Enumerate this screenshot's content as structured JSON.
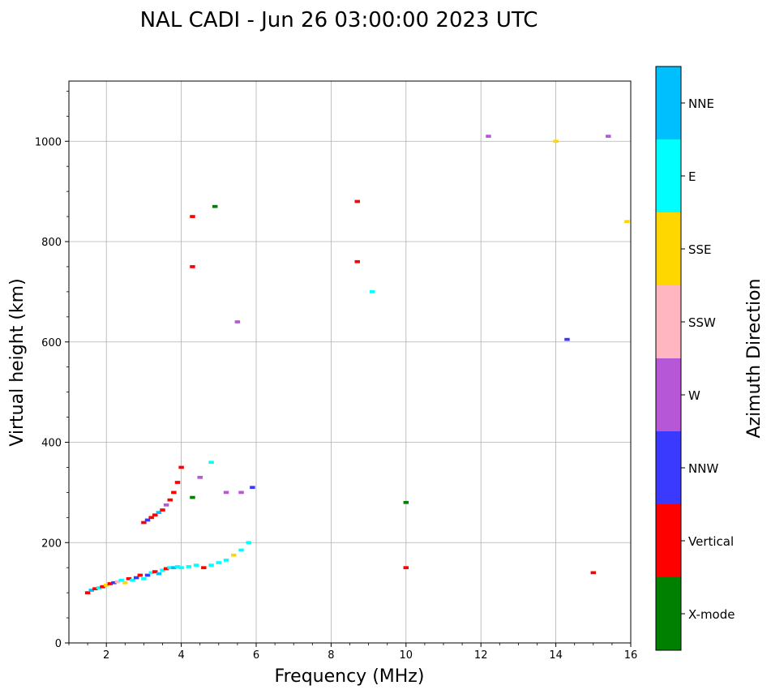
{
  "chart_data": {
    "type": "scatter",
    "title": "NAL CADI - Jun 26 03:00:00 2023 UTC",
    "xlabel": "Frequency (MHz)",
    "ylabel": "Virtual height (km)",
    "xlim": [
      1,
      16
    ],
    "ylim": [
      0,
      1120
    ],
    "xticks": [
      "2",
      "4",
      "6",
      "8",
      "10",
      "12",
      "14",
      "16"
    ],
    "yticks": [
      "0",
      "200",
      "400",
      "600",
      "800",
      "1000"
    ],
    "grid": true,
    "colorbar": {
      "title": "Azimuth Direction",
      "categories": [
        "X-mode",
        "Vertical",
        "NNW",
        "W",
        "SSW",
        "SSE",
        "E",
        "NNE"
      ],
      "colors": [
        "#008000",
        "#ff0000",
        "#3a3aff",
        "#b557d6",
        "#ffb6c1",
        "#ffd700",
        "#00ffff",
        "#00bfff"
      ]
    },
    "echoes": [
      {
        "f": 1.5,
        "h": 100,
        "c": "Vertical"
      },
      {
        "f": 1.6,
        "h": 105,
        "c": "NNE"
      },
      {
        "f": 1.7,
        "h": 108,
        "c": "Vertical"
      },
      {
        "f": 1.8,
        "h": 110,
        "c": "E"
      },
      {
        "f": 1.9,
        "h": 112,
        "c": "Vertical"
      },
      {
        "f": 2.0,
        "h": 115,
        "c": "SSE"
      },
      {
        "f": 2.1,
        "h": 118,
        "c": "Vertical"
      },
      {
        "f": 2.2,
        "h": 120,
        "c": "NNW"
      },
      {
        "f": 2.3,
        "h": 122,
        "c": "SSW"
      },
      {
        "f": 2.4,
        "h": 125,
        "c": "E"
      },
      {
        "f": 2.5,
        "h": 120,
        "c": "SSE"
      },
      {
        "f": 2.6,
        "h": 128,
        "c": "Vertical"
      },
      {
        "f": 2.7,
        "h": 125,
        "c": "E"
      },
      {
        "f": 2.8,
        "h": 130,
        "c": "NNW"
      },
      {
        "f": 2.9,
        "h": 135,
        "c": "Vertical"
      },
      {
        "f": 3.0,
        "h": 128,
        "c": "E"
      },
      {
        "f": 3.1,
        "h": 135,
        "c": "NNW"
      },
      {
        "f": 3.2,
        "h": 140,
        "c": "E"
      },
      {
        "f": 3.3,
        "h": 142,
        "c": "Vertical"
      },
      {
        "f": 3.4,
        "h": 138,
        "c": "NNE"
      },
      {
        "f": 3.5,
        "h": 145,
        "c": "E"
      },
      {
        "f": 3.6,
        "h": 148,
        "c": "Vertical"
      },
      {
        "f": 3.7,
        "h": 150,
        "c": "E"
      },
      {
        "f": 3.8,
        "h": 150,
        "c": "NNE"
      },
      {
        "f": 3.9,
        "h": 152,
        "c": "E"
      },
      {
        "f": 4.0,
        "h": 150,
        "c": "E"
      },
      {
        "f": 4.2,
        "h": 152,
        "c": "E"
      },
      {
        "f": 4.4,
        "h": 155,
        "c": "E"
      },
      {
        "f": 4.6,
        "h": 150,
        "c": "Vertical"
      },
      {
        "f": 4.8,
        "h": 155,
        "c": "E"
      },
      {
        "f": 5.0,
        "h": 160,
        "c": "E"
      },
      {
        "f": 5.2,
        "h": 165,
        "c": "E"
      },
      {
        "f": 5.4,
        "h": 175,
        "c": "SSE"
      },
      {
        "f": 5.6,
        "h": 185,
        "c": "E"
      },
      {
        "f": 5.8,
        "h": 200,
        "c": "E"
      },
      {
        "f": 3.0,
        "h": 240,
        "c": "Vertical"
      },
      {
        "f": 3.1,
        "h": 245,
        "c": "NNW"
      },
      {
        "f": 3.2,
        "h": 250,
        "c": "Vertical"
      },
      {
        "f": 3.3,
        "h": 255,
        "c": "Vertical"
      },
      {
        "f": 3.4,
        "h": 260,
        "c": "NNE"
      },
      {
        "f": 3.5,
        "h": 265,
        "c": "Vertical"
      },
      {
        "f": 3.6,
        "h": 275,
        "c": "W"
      },
      {
        "f": 3.7,
        "h": 285,
        "c": "Vertical"
      },
      {
        "f": 3.8,
        "h": 300,
        "c": "Vertical"
      },
      {
        "f": 3.9,
        "h": 320,
        "c": "Vertical"
      },
      {
        "f": 4.0,
        "h": 350,
        "c": "Vertical"
      },
      {
        "f": 4.3,
        "h": 290,
        "c": "X-mode"
      },
      {
        "f": 4.5,
        "h": 330,
        "c": "W"
      },
      {
        "f": 4.8,
        "h": 360,
        "c": "E"
      },
      {
        "f": 5.2,
        "h": 300,
        "c": "W"
      },
      {
        "f": 5.6,
        "h": 300,
        "c": "W"
      },
      {
        "f": 5.9,
        "h": 310,
        "c": "NNW"
      },
      {
        "f": 4.3,
        "h": 750,
        "c": "Vertical"
      },
      {
        "f": 4.3,
        "h": 850,
        "c": "Vertical"
      },
      {
        "f": 4.9,
        "h": 870,
        "c": "X-mode"
      },
      {
        "f": 5.5,
        "h": 640,
        "c": "W"
      },
      {
        "f": 8.7,
        "h": 880,
        "c": "Vertical"
      },
      {
        "f": 8.7,
        "h": 760,
        "c": "Vertical"
      },
      {
        "f": 9.1,
        "h": 700,
        "c": "E"
      },
      {
        "f": 10.0,
        "h": 150,
        "c": "Vertical"
      },
      {
        "f": 10.0,
        "h": 280,
        "c": "X-mode"
      },
      {
        "f": 12.2,
        "h": 1010,
        "c": "W"
      },
      {
        "f": 14.0,
        "h": 1000,
        "c": "SSE"
      },
      {
        "f": 14.3,
        "h": 605,
        "c": "NNW"
      },
      {
        "f": 15.0,
        "h": 140,
        "c": "Vertical"
      },
      {
        "f": 15.4,
        "h": 1010,
        "c": "W"
      },
      {
        "f": 15.9,
        "h": 840,
        "c": "SSE"
      }
    ]
  }
}
